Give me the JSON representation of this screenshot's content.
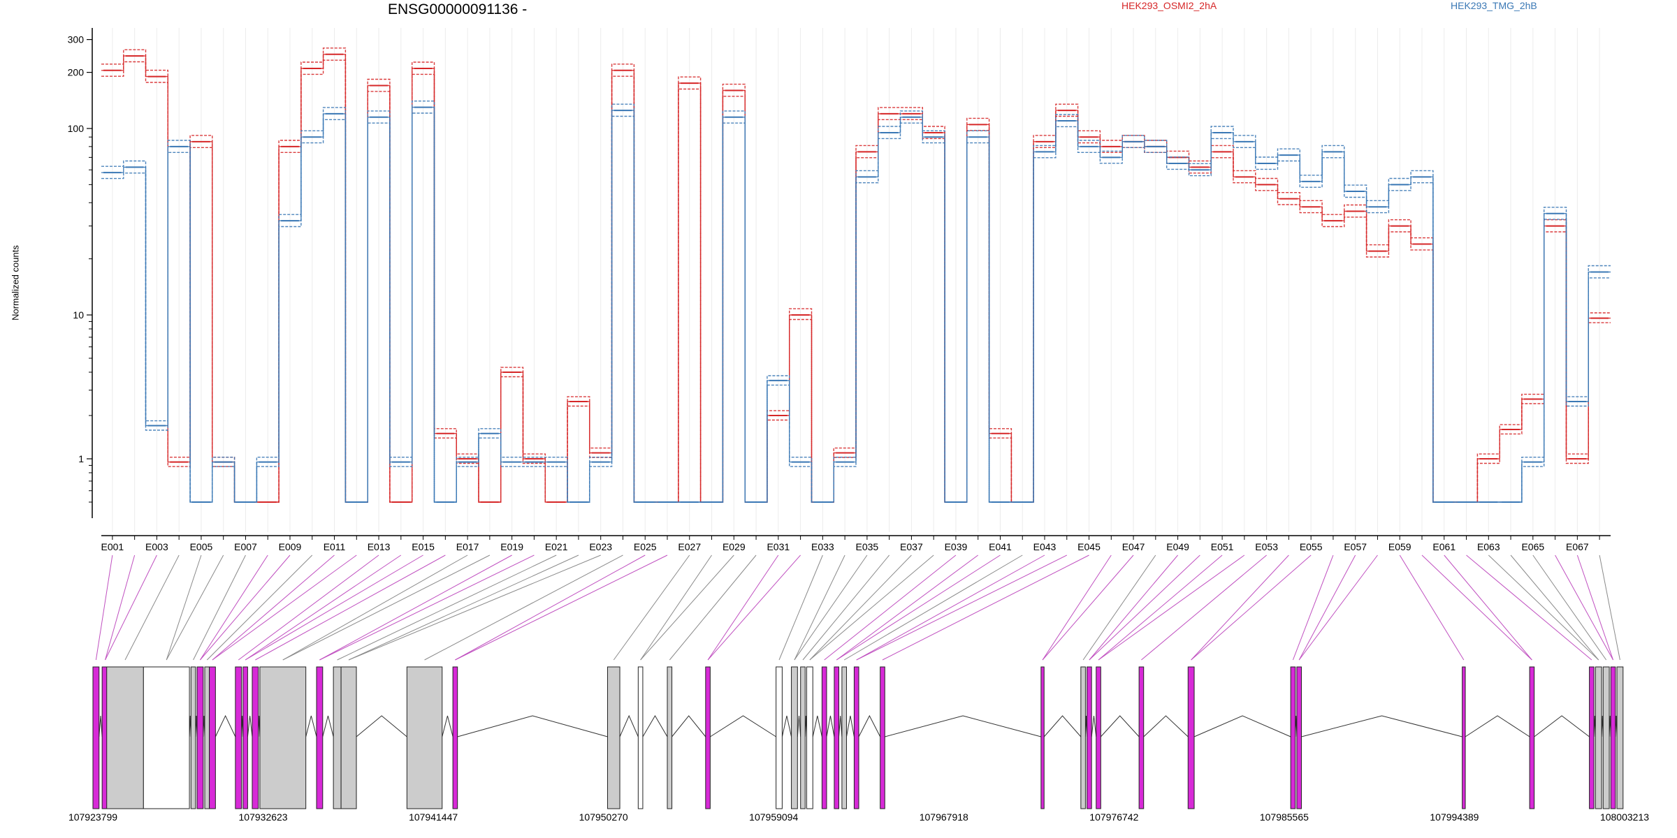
{
  "chart_data": {
    "type": "line",
    "title": "ENSG00000091136 -",
    "ylabel": "Normalized counts",
    "yscale": "log",
    "yticks": [
      "1",
      "10",
      "100",
      "200",
      "300"
    ],
    "legend": [
      {
        "name": "HEK293_OSMI2_2hA",
        "color": "#d62728"
      },
      {
        "name": "HEK293_TMG_2hB",
        "color": "#3a78b5"
      }
    ],
    "exons": [
      "E001",
      "E002",
      "E003",
      "E004",
      "E005",
      "E006",
      "E007",
      "E008",
      "E009",
      "E010",
      "E011",
      "E012",
      "E013",
      "E014",
      "E015",
      "E016",
      "E017",
      "E018",
      "E019",
      "E020",
      "E021",
      "E022",
      "E023",
      "E024",
      "E025",
      "E026",
      "E027",
      "E028",
      "E029",
      "E030",
      "E031",
      "E032",
      "E033",
      "E034",
      "E035",
      "E036",
      "E037",
      "E038",
      "E039",
      "E040",
      "E041",
      "E042",
      "E043",
      "E044",
      "E045",
      "E046",
      "E047",
      "E048",
      "E049",
      "E050",
      "E051",
      "E052",
      "E053",
      "E054",
      "E055",
      "E056",
      "E057",
      "E058",
      "E059",
      "E060",
      "E061",
      "E062",
      "E063",
      "E064",
      "E065",
      "E066",
      "E067",
      "E068"
    ],
    "exon_tick_labels": [
      "E001",
      "E003",
      "E005",
      "E007",
      "E009",
      "E011",
      "E013",
      "E015",
      "E017",
      "E019",
      "E021",
      "E023",
      "E025",
      "E027",
      "E029",
      "E031",
      "E033",
      "E035",
      "E037",
      "E039",
      "E041",
      "E043",
      "E045",
      "E047",
      "E049",
      "E051",
      "E053",
      "E055",
      "E057",
      "E059",
      "E061",
      "E063",
      "E065",
      "E067"
    ],
    "series": [
      {
        "name": "HEK293_OSMI2_2hA",
        "color": "#d62728",
        "values": [
          205,
          245,
          190,
          0.95,
          85,
          0.95,
          0.5,
          0.5,
          80,
          210,
          250,
          0.5,
          170,
          0.5,
          210,
          1.5,
          1.0,
          0.5,
          4.0,
          1.0,
          0.5,
          2.5,
          1.1,
          205,
          0.5,
          0.5,
          175,
          0.5,
          160,
          0.5,
          2.0,
          10.0,
          0.5,
          1.1,
          75,
          120,
          120,
          95,
          0.5,
          105,
          1.5,
          0.5,
          85,
          125,
          90,
          80,
          85,
          80,
          70,
          62,
          75,
          55,
          50,
          42,
          38,
          32,
          36,
          22,
          30,
          24,
          0.5,
          0.5,
          1.0,
          1.6,
          2.6,
          30,
          1.0,
          9.5
        ]
      },
      {
        "name": "HEK293_TMG_2hB",
        "color": "#3a78b5",
        "values": [
          58,
          62,
          1.7,
          80,
          0.5,
          0.95,
          0.5,
          0.95,
          32,
          90,
          120,
          0.5,
          115,
          0.95,
          130,
          0.5,
          0.95,
          1.5,
          0.95,
          0.95,
          0.95,
          0.5,
          0.95,
          125,
          0.5,
          0.5,
          0.5,
          0.5,
          115,
          0.5,
          3.5,
          0.95,
          0.5,
          0.95,
          55,
          95,
          115,
          90,
          0.5,
          90,
          0.5,
          0.5,
          75,
          110,
          80,
          70,
          85,
          80,
          65,
          60,
          95,
          85,
          65,
          72,
          52,
          75,
          46,
          38,
          50,
          55,
          0.5,
          0.5,
          0.5,
          0.5,
          0.95,
          35,
          2.5,
          17
        ]
      }
    ],
    "genome_axis_labels": [
      "107923799",
      "107932623",
      "107941447",
      "107950270",
      "107959094",
      "107967918",
      "107976742",
      "107985565",
      "107994389",
      "108003213"
    ]
  }
}
